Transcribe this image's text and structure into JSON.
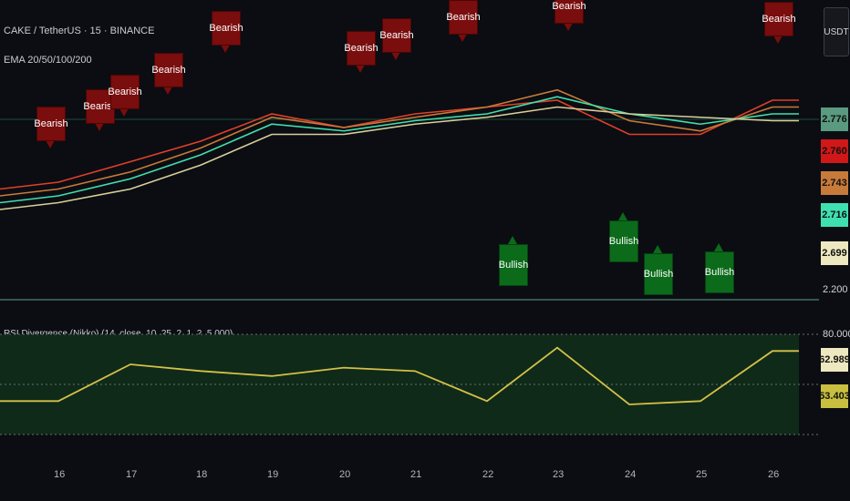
{
  "header": {
    "symbol_line": "CAKE / TetherUS · 15 · BINANCE",
    "indicator_line": "EMA 20/50/100/200",
    "rsi_line": "RSI Divergence (Nikko) (14, close, 10, 25, 2, 1, 2, 5,000)"
  },
  "currency_button": "USDT",
  "colors": {
    "background": "#0b0d12",
    "bearish": "#7a0d0d",
    "bullish": "#0b6b1a",
    "ema20": "#e0402a",
    "ema50": "#c87a3a",
    "ema100": "#3fe0b0",
    "ema200": "#d8cf9a",
    "rsi_line": "#d4c04a"
  },
  "price_labels": [
    {
      "value": "2.776",
      "color": "#5a9a80"
    },
    {
      "value": "2.760",
      "color": "#d01818"
    },
    {
      "value": "2.743",
      "color": "#c87a3a"
    },
    {
      "value": "2.716",
      "color": "#3fe0b0"
    },
    {
      "value": "2.699",
      "color": "#eee8c0"
    }
  ],
  "price_axis_bottom": "2.200",
  "rsi_labels": {
    "top": "80.000",
    "val1": "62.989",
    "val2": "53.403"
  },
  "x_axis": [
    "16",
    "17",
    "18",
    "19",
    "20",
    "21",
    "22",
    "23",
    "24",
    "25",
    "26"
  ],
  "signals": {
    "bearish_label": "Bearish",
    "bullish_label": "Bullish"
  },
  "chart_data": {
    "type": "line",
    "title": "CAKE / TetherUS · 15 · BINANCE",
    "x": [
      "16",
      "17",
      "18",
      "19",
      "20",
      "21",
      "22",
      "23",
      "24",
      "25",
      "26"
    ],
    "series": [
      {
        "name": "EMA 20",
        "values": [
          2.52,
          2.58,
          2.64,
          2.72,
          2.68,
          2.72,
          2.74,
          2.76,
          2.66,
          2.66,
          2.76
        ]
      },
      {
        "name": "EMA 50",
        "values": [
          2.5,
          2.55,
          2.62,
          2.71,
          2.68,
          2.71,
          2.74,
          2.79,
          2.7,
          2.67,
          2.74
        ]
      },
      {
        "name": "EMA 100",
        "values": [
          2.48,
          2.53,
          2.6,
          2.69,
          2.67,
          2.7,
          2.72,
          2.77,
          2.72,
          2.69,
          2.72
        ]
      },
      {
        "name": "EMA 200",
        "values": [
          2.46,
          2.5,
          2.57,
          2.66,
          2.66,
          2.69,
          2.71,
          2.74,
          2.72,
          2.71,
          2.7
        ]
      }
    ],
    "rsi": {
      "values": [
        40,
        62,
        58,
        55,
        60,
        58,
        40,
        72,
        38,
        40,
        70
      ],
      "ylim": [
        20,
        80
      ]
    },
    "last_values": {
      "ema20": 2.76,
      "ema50": 2.743,
      "ema100": 2.716,
      "ema200": 2.699,
      "price": 2.776
    },
    "ylim": [
      2.2,
      3.0
    ]
  }
}
